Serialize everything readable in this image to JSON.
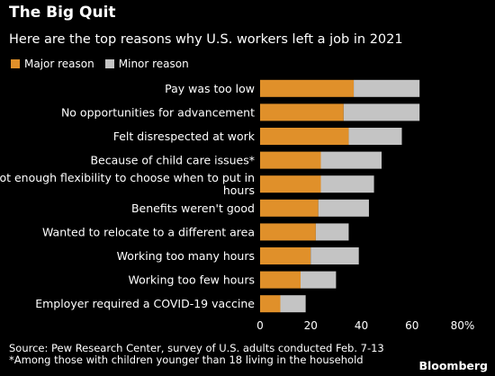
{
  "title": "The Big Quit",
  "subtitle": "Here are the top reasons why U.S. workers left a job in 2021",
  "legend": {
    "major_label": "Major reason",
    "minor_label": "Minor reason"
  },
  "colors": {
    "major": "#e0902a",
    "minor": "#c4c4c4",
    "background": "#000000"
  },
  "source": "Source: Pew Research Center, survey of U.S. adults conducted Feb. 7-13",
  "footnote": "*Among those with children younger than 18 living in the household",
  "brand": "Bloomberg",
  "chart_data": {
    "type": "bar",
    "orientation": "horizontal",
    "stacked": true,
    "categories": [
      "Pay was too low",
      "No opportunities for advancement",
      "Felt disrespected at work",
      "Because of child care issues*",
      "Not enough flexibility to choose when to put in hours",
      "Benefits weren't good",
      "Wanted to relocate to a different area",
      "Working too many hours",
      "Working too few hours",
      "Employer required a COVID-19 vaccine"
    ],
    "category_lines": [
      [
        "Pay was too low"
      ],
      [
        "No opportunities for advancement"
      ],
      [
        "Felt disrespected at work"
      ],
      [
        "Because of child care issues*"
      ],
      [
        "Not enough flexibility to choose when to put in",
        "hours"
      ],
      [
        "Benefits weren't good"
      ],
      [
        "Wanted to relocate to a different area"
      ],
      [
        "Working too many hours"
      ],
      [
        "Working too few hours"
      ],
      [
        "Employer required a COVID-19 vaccine"
      ]
    ],
    "series": [
      {
        "name": "Major reason",
        "values": [
          37,
          33,
          35,
          24,
          24,
          23,
          22,
          20,
          16,
          8
        ]
      },
      {
        "name": "Minor reason",
        "values": [
          26,
          30,
          21,
          24,
          21,
          20,
          13,
          19,
          14,
          10
        ]
      }
    ],
    "xlim": [
      0,
      80
    ],
    "xticks": [
      0,
      20,
      40,
      60,
      80
    ],
    "xtick_labels": [
      "0",
      "20",
      "40",
      "60",
      "80%"
    ],
    "grid": false,
    "legend_position": "top-left"
  }
}
